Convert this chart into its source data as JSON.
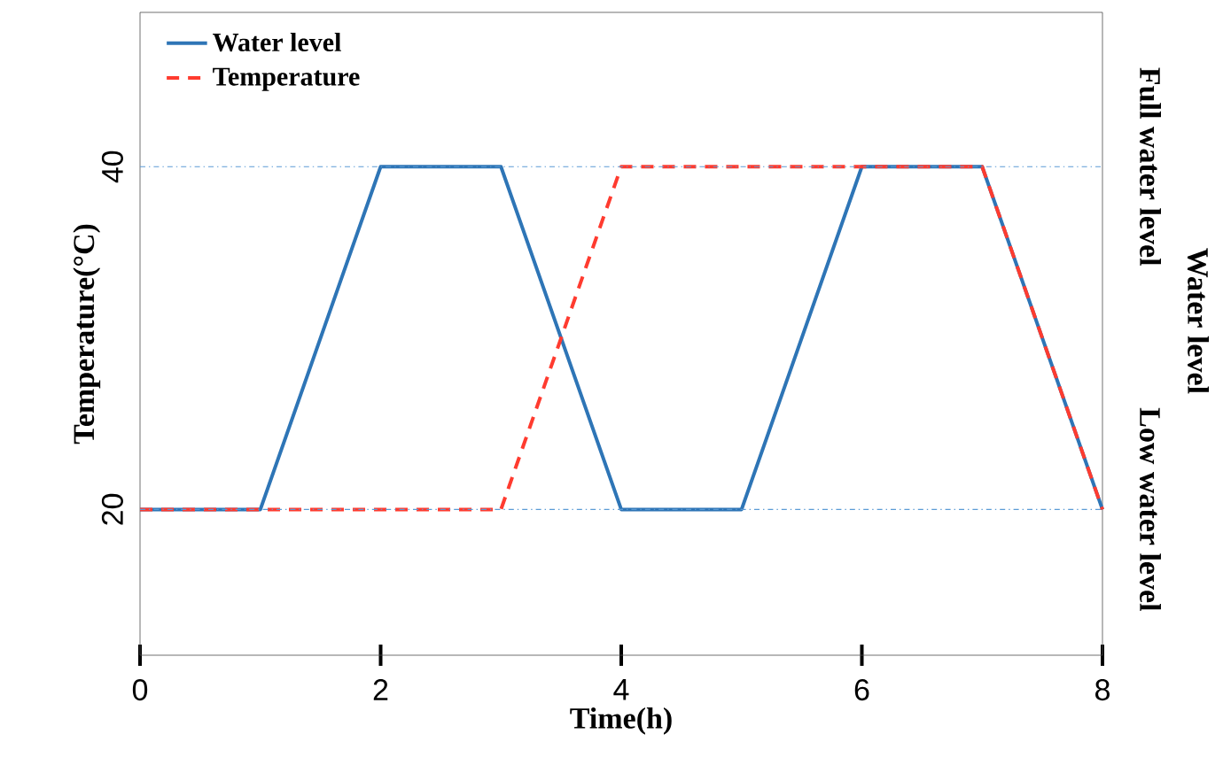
{
  "chart_data": {
    "type": "line",
    "xlabel": "Time(h)",
    "ylabel": "Temperature(°C)",
    "annotations": [
      "Water level"
    ],
    "series": [
      {
        "name": "Water level",
        "color": "#2e75b6",
        "line_style": "solid",
        "x": [
          0,
          1,
          2,
          3,
          4,
          5,
          6,
          7,
          8
        ],
        "values": [
          20,
          20,
          40,
          40,
          20,
          20,
          40,
          40,
          20
        ]
      },
      {
        "name": "Temperature",
        "color": "#ff3b2f",
        "line_style": "dashed",
        "x": [
          0,
          3,
          4,
          7,
          8
        ],
        "values": [
          20,
          20,
          40,
          40,
          20
        ]
      }
    ],
    "ref_lines": [
      {
        "axis": "y",
        "value": 40,
        "label": "Full water level",
        "color": "#5b9bd5",
        "line_style": "dotted"
      },
      {
        "axis": "y",
        "value": 20,
        "label": "Low water level",
        "color": "#5b9bd5",
        "line_style": "dotted"
      }
    ],
    "xlim": [
      0,
      8
    ],
    "ylim": [
      11.5,
      49
    ],
    "xticks": [
      0,
      2,
      4,
      6,
      8
    ],
    "yticks": [
      20,
      40
    ],
    "grid": false,
    "legend": "top left",
    "marker": "none"
  }
}
